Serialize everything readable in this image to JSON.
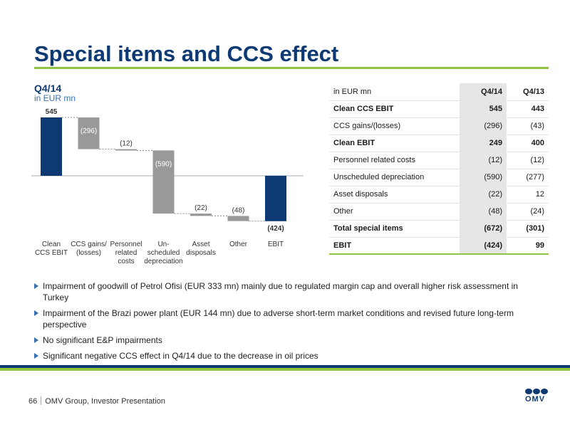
{
  "slide": {
    "title": "Special items and CCS effect"
  },
  "chart": {
    "title": "Q4/14",
    "unit": "in EUR mn"
  },
  "chart_data": {
    "type": "bar",
    "subtype": "waterfall",
    "title": "Q4/14",
    "ylabel": "in EUR mn",
    "categories": [
      "Clean\nCCS EBIT",
      "CCS gains/\n(losses)",
      "Personnel\nrelated\ncosts",
      "Un-\nscheduled\ndepreciation",
      "Asset\ndisposals",
      "Other",
      "EBIT"
    ],
    "values": [
      545,
      -296,
      -12,
      -590,
      -22,
      -48,
      -424
    ],
    "bar_kinds": [
      "total",
      "delta",
      "delta",
      "delta",
      "delta",
      "delta",
      "total"
    ],
    "data_labels": [
      "545",
      "(296)",
      "(12)",
      "(590)",
      "(22)",
      "(48)",
      "(424)"
    ],
    "colors": {
      "total": "#0d3a73",
      "delta": "#999999"
    }
  },
  "table": {
    "header": [
      "in EUR mn",
      "Q4/14",
      "Q4/13"
    ],
    "rows": [
      {
        "label": "Clean CCS EBIT",
        "q414": "545",
        "q413": "443",
        "bold": true
      },
      {
        "label": "CCS gains/(losses)",
        "q414": "(296)",
        "q413": "(43)",
        "bold": false
      },
      {
        "label": "Clean EBIT",
        "q414": "249",
        "q413": "400",
        "bold": true
      },
      {
        "label": "Personnel related costs",
        "q414": "(12)",
        "q413": "(12)",
        "bold": false
      },
      {
        "label": "Unscheduled depreciation",
        "q414": "(590)",
        "q413": "(277)",
        "bold": false
      },
      {
        "label": "Asset disposals",
        "q414": "(22)",
        "q413": "12",
        "bold": false
      },
      {
        "label": "Other",
        "q414": "(48)",
        "q413": "(24)",
        "bold": false
      },
      {
        "label": "Total special items",
        "q414": "(672)",
        "q413": "(301)",
        "bold": true
      },
      {
        "label": "EBIT",
        "q414": "(424)",
        "q413": "99",
        "bold": true
      }
    ]
  },
  "bullets": [
    "Impairment of goodwill of Petrol Ofisi (EUR 333 mn) mainly due to regulated margin cap and overall higher risk assessment in Turkey",
    "Impairment of the Brazi power plant (EUR 144 mn) due to adverse short-term market conditions and revised future long-term perspective",
    "No significant E&P impairments",
    "Significant negative CCS effect in Q4/14 due to the decrease in oil prices"
  ],
  "footer": {
    "page_number": "66",
    "text": "OMV Group, Investor Presentation"
  },
  "logo": {
    "text": "OMV"
  },
  "colors": {
    "brand_blue": "#0d3a73",
    "brand_green": "#8cc63f",
    "delta_grey": "#999999",
    "highlight_grey": "#e6e6e6"
  }
}
